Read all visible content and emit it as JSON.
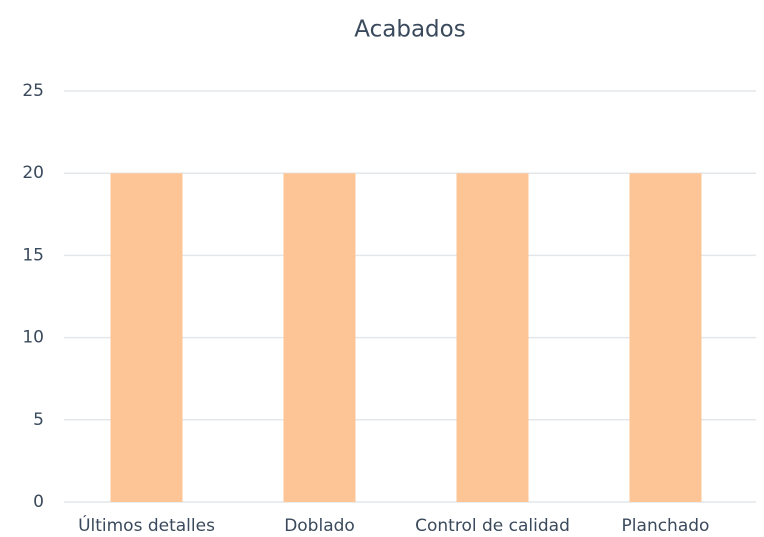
{
  "chart_data": {
    "type": "bar",
    "title": "Acabados",
    "categories": [
      "Últimos detalles",
      "Doblado",
      "Control de calidad",
      "Planchado"
    ],
    "values": [
      20,
      20,
      20,
      20
    ],
    "color": "#fdc596",
    "ylim": [
      0,
      25
    ],
    "yticks": [
      0,
      5,
      10,
      15,
      20,
      25
    ],
    "grid": true
  }
}
